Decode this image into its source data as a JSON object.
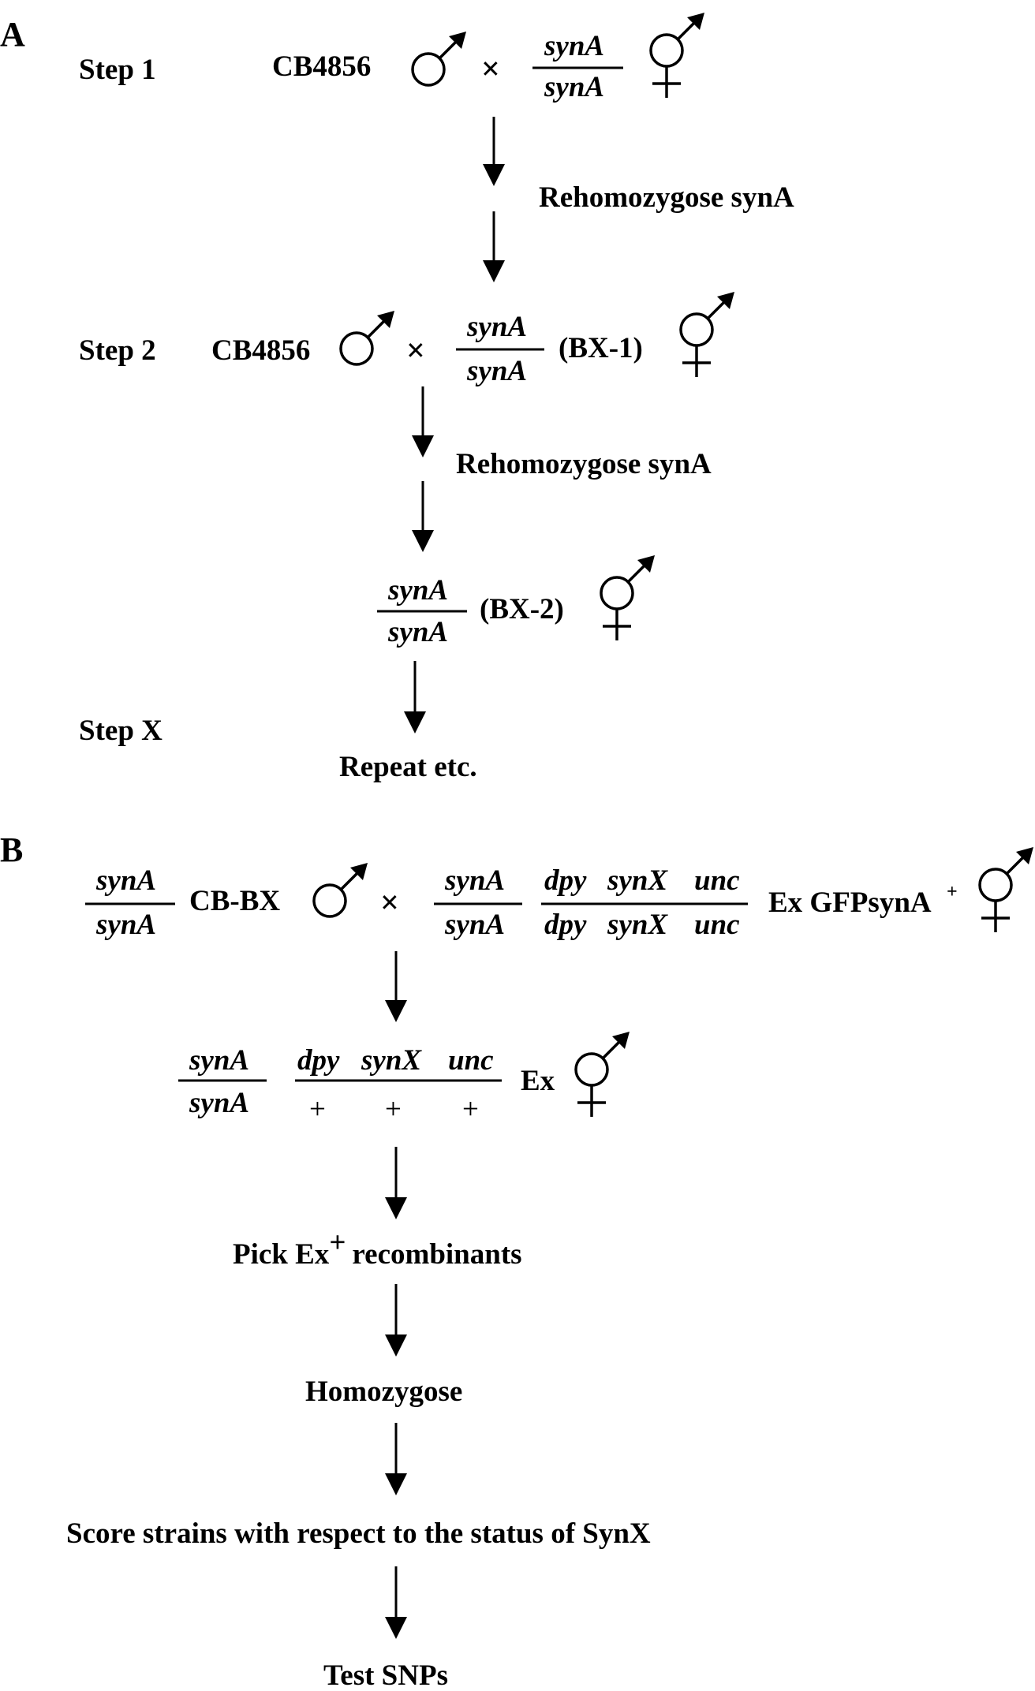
{
  "panel_a": {
    "label": "A",
    "step1": "Step 1",
    "step2": "Step 2",
    "stepx": "Step X",
    "strain": "CB4856",
    "gene": "synA",
    "rehomozygose": "Rehomozygose",
    "bx1": "(BX-1)",
    "bx2": "(BX-2)",
    "repeat": "Repeat etc.",
    "cross_symbol": "×"
  },
  "panel_b": {
    "label": "B",
    "gene": "synA",
    "strain": "CB-BX",
    "dpy": "dpy",
    "synx": "synX",
    "unc": "unc",
    "plus": "+",
    "ex": "Ex",
    "ex_gfp": "Ex GFP",
    "superscript_plus": "+",
    "pick": "Pick Ex",
    "recombinants": "recombinants",
    "homozygose": "Homozygose",
    "score": "Score strains with respect to the status of",
    "synx_cap": "SynX",
    "test_snps": "Test SNPs",
    "cross_symbol": "×"
  }
}
